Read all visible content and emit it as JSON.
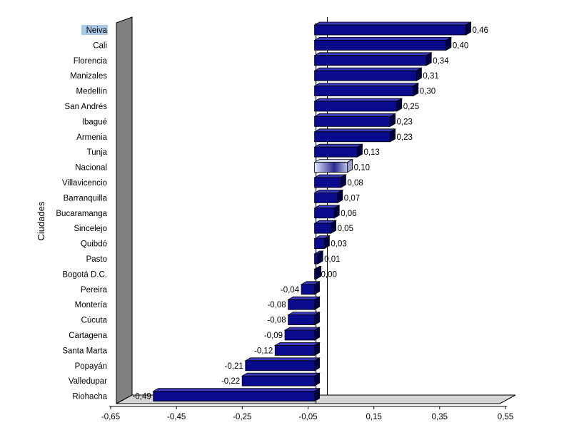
{
  "chart_data": {
    "type": "bar",
    "orientation": "horizontal",
    "style": "3d",
    "title": "",
    "xlabel": "",
    "ylabel": "Ciudades",
    "xlim": [
      -0.65,
      0.55
    ],
    "xticks": [
      "-0,65",
      "-0,45",
      "-0,25",
      "-0,05",
      "0,15",
      "0,35",
      "0,55"
    ],
    "grid": false,
    "legend": "none",
    "categories": [
      "Neiva",
      "Cali",
      "Florencia",
      "Manizales",
      "Medellín",
      "San Andrés",
      "Ibagué",
      "Armenia",
      "Tunja",
      "Nacional",
      "Villavicencio",
      "Barranquilla",
      "Bucaramanga",
      "Sincelejo",
      "Quibdó",
      "Pasto",
      "Bogotá D.C.",
      "Pereira",
      "Montería",
      "Cúcuta",
      "Cartagena",
      "Santa Marta",
      "Popayán",
      "Valledupar",
      "Riohacha"
    ],
    "values": [
      0.46,
      0.4,
      0.34,
      0.31,
      0.3,
      0.25,
      0.23,
      0.23,
      0.13,
      0.1,
      0.08,
      0.07,
      0.06,
      0.05,
      0.03,
      0.01,
      0.0,
      -0.04,
      -0.08,
      -0.08,
      -0.09,
      -0.12,
      -0.21,
      -0.22,
      -0.49
    ],
    "value_labels": [
      "0,46",
      "0,40",
      "0,34",
      "0,31",
      "0,30",
      "0,25",
      "0,23",
      "0,23",
      "0,13",
      "0,10",
      "0,08",
      "0,07",
      "0,06",
      "0,05",
      "0,03",
      "0,01",
      "0,00",
      "-0,04",
      "-0,08",
      "-0,08",
      "-0,09",
      "-0,12",
      "-0,21",
      "-0,22",
      "-0,49"
    ],
    "highlighted_category": "Neiva",
    "highlight_label_bg": "#a8c8e8",
    "reference_category": "Nacional",
    "colors": {
      "bar": "#0a0a8c",
      "bar_top": "#3a3ab8",
      "bar_side": "#000048",
      "bar_edge": "#000000",
      "reference_bar": "#b8bcd8",
      "wall_side": "#808080",
      "floor": "#d4d4d4"
    }
  }
}
